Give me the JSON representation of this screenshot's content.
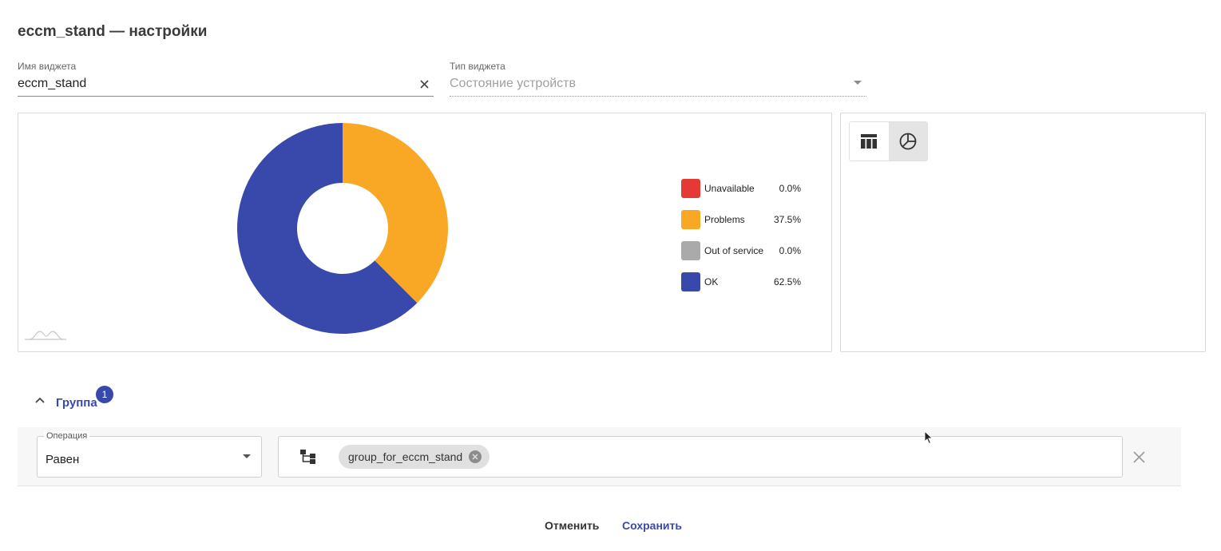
{
  "page": {
    "title": "eccm_stand — настройки"
  },
  "form": {
    "widget_name": {
      "label": "Имя виджета",
      "value": "eccm_stand"
    },
    "widget_type": {
      "label": "Тип виджета",
      "value": "Состояние устройств"
    }
  },
  "colors": {
    "unavailable": "#e53935",
    "problems": "#f9a825",
    "out_of_service": "#aaaaaa",
    "ok": "#3949ab",
    "accent": "#3949ab"
  },
  "chart_data": {
    "type": "pie",
    "donut": true,
    "categories": [
      "Unavailable",
      "Problems",
      "Out of service",
      "OK"
    ],
    "values": [
      0.0,
      37.5,
      0.0,
      62.5
    ],
    "value_labels": [
      "0.0%",
      "37.5%",
      "0.0%",
      "62.5%"
    ],
    "colors": [
      "#e53935",
      "#f9a825",
      "#aaaaaa",
      "#3949ab"
    ],
    "legend_position": "right"
  },
  "view_toggle": {
    "options": [
      "table-icon",
      "pie-chart-icon"
    ],
    "selected": "pie-chart-icon"
  },
  "group": {
    "label": "Группа",
    "badge_count": "1",
    "filter": {
      "operation_label": "Операция",
      "operation_value": "Равен",
      "chip_label": "group_for_eccm_stand"
    }
  },
  "footer": {
    "cancel_label": "Отменить",
    "save_label": "Сохранить"
  }
}
